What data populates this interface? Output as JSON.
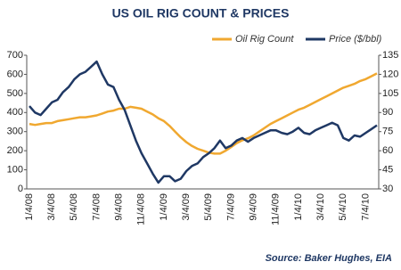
{
  "chart_data": {
    "type": "line",
    "title": "US OIL RIG COUNT & PRICES",
    "source": "Source: Baker Hughes, EIA",
    "categories": [
      "1/4/08",
      null,
      null,
      null,
      "3/4/08",
      null,
      null,
      null,
      "5/4/08",
      null,
      null,
      null,
      "7/4/08",
      null,
      null,
      null,
      "9/4/08",
      null,
      null,
      null,
      "11/4/08",
      null,
      null,
      null,
      "1/4/09",
      null,
      null,
      null,
      "3/4/09",
      null,
      null,
      null,
      "5/4/09",
      null,
      null,
      null,
      "7/4/09",
      null,
      null,
      null,
      "9/4/09",
      null,
      null,
      null,
      "11/4/09",
      null,
      null,
      null,
      "1/4/10",
      null,
      null,
      null,
      "3/4/10",
      null,
      null,
      null,
      "5/4/10",
      null,
      null,
      null,
      "7/4/10",
      null,
      null
    ],
    "series": [
      {
        "name": "Oil Rig Count",
        "color": "#f0a830",
        "axis": "y",
        "values": [
          340,
          335,
          340,
          345,
          345,
          355,
          360,
          365,
          370,
          375,
          375,
          380,
          385,
          395,
          405,
          410,
          420,
          420,
          430,
          425,
          420,
          405,
          390,
          370,
          355,
          330,
          300,
          270,
          245,
          225,
          210,
          200,
          190,
          185,
          185,
          200,
          220,
          240,
          255,
          265,
          280,
          300,
          320,
          340,
          355,
          370,
          385,
          400,
          415,
          425,
          440,
          455,
          470,
          485,
          500,
          515,
          530,
          540,
          550,
          565,
          575,
          590,
          605
        ]
      },
      {
        "name": "Price ($/bbl)",
        "color": "#1f3864",
        "axis": "y2",
        "values": [
          95,
          90,
          88,
          93,
          98,
          100,
          106,
          110,
          116,
          120,
          122,
          126,
          130,
          120,
          112,
          110,
          100,
          92,
          80,
          68,
          58,
          50,
          42,
          35,
          40,
          40,
          36,
          38,
          44,
          48,
          50,
          55,
          58,
          62,
          68,
          62,
          64,
          68,
          70,
          67,
          70,
          72,
          74,
          76,
          76,
          74,
          73,
          75,
          78,
          74,
          73,
          76,
          78,
          80,
          82,
          80,
          70,
          68,
          72,
          71,
          74,
          77,
          80
        ]
      }
    ],
    "ylim": [
      0,
      700
    ],
    "yticks": [
      0,
      100,
      200,
      300,
      400,
      500,
      600,
      700
    ],
    "y2lim": [
      30,
      135
    ],
    "y2ticks": [
      30,
      45,
      60,
      75,
      90,
      105,
      120,
      135
    ],
    "grid": false
  }
}
